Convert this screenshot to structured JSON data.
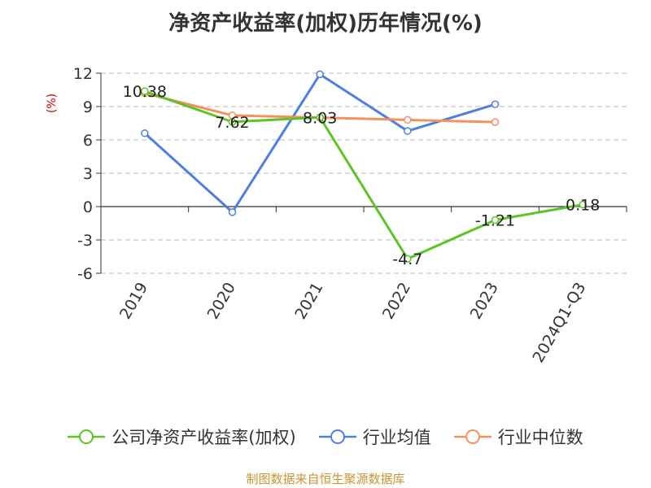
{
  "title": "净资产收益率(加权)历年情况(%)",
  "source": "制图数据来自恒生聚源数据库",
  "chart_data": {
    "type": "line",
    "categories": [
      "2019",
      "2020",
      "2021",
      "2022",
      "2023",
      "2024Q1-Q3"
    ],
    "ylabel": "(%)",
    "ylim": [
      -6,
      12
    ],
    "yticks": [
      -6,
      -3,
      0,
      3,
      6,
      9,
      12
    ],
    "grid": true,
    "legend_position": "bottom",
    "series": [
      {
        "name": "公司净资产收益率(加权)",
        "color": "#5cc424",
        "values": [
          10.38,
          7.62,
          8.03,
          -4.7,
          -1.21,
          0.18
        ],
        "labels": [
          "10.38",
          "7.62",
          "8.03",
          "-4.7",
          "-1.21",
          "0.18"
        ]
      },
      {
        "name": "行业均值",
        "color": "#4f7fdc",
        "values": [
          6.6,
          -0.5,
          11.9,
          6.8,
          9.2,
          null
        ]
      },
      {
        "name": "行业中位数",
        "color": "#f4915e",
        "values": [
          10.2,
          8.2,
          8.0,
          7.8,
          7.6,
          null
        ]
      }
    ]
  }
}
